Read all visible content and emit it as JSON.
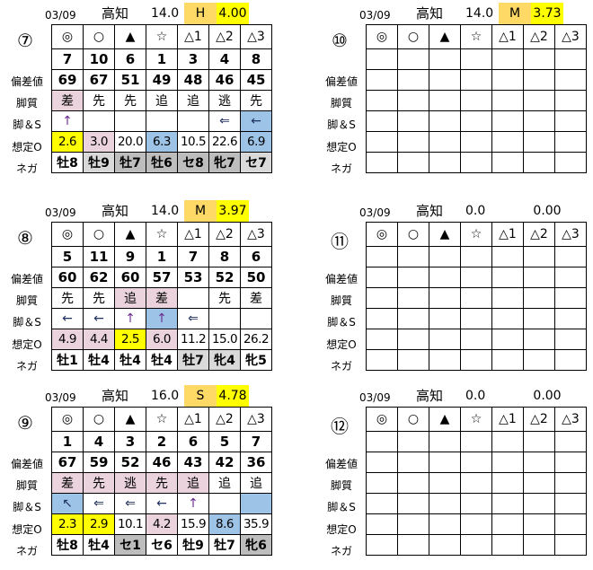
{
  "palette": {
    "p": "#ead3dd",
    "b": "#9dc3e6",
    "y": "#ffff00",
    "g": "#d9d9d9",
    "d": "#bdbdbd",
    "o": "#ffd966",
    "": "transparent"
  },
  "row_labels": [
    "偏差値",
    "脚質",
    "脚＆S",
    "想定O",
    "ネガ"
  ],
  "marks": [
    "◎",
    "○",
    "▲",
    "☆",
    "△1",
    "△2",
    "△3"
  ],
  "panels": [
    {
      "num": "⑦",
      "date": "03/09",
      "venue": "高知",
      "dist": "14.0",
      "grade": "H",
      "value": "4.00",
      "grade_bg": "o",
      "value_bg": "y",
      "horses": [
        "7",
        "10",
        "6",
        "1",
        "3",
        "4",
        "8"
      ],
      "scores": [
        "69",
        "67",
        "51",
        "49",
        "48",
        "46",
        "45"
      ],
      "styles": [
        "差",
        "先",
        "先",
        "追",
        "追",
        "逃",
        "先"
      ],
      "styles_bg": [
        "p",
        "",
        "",
        "",
        "",
        "",
        ""
      ],
      "arrows": [
        "↑",
        "",
        "",
        "",
        "",
        "⇐",
        "←"
      ],
      "arrows_bg": [
        "",
        "",
        "",
        "",
        "",
        "",
        "b"
      ],
      "odds": [
        "2.6",
        "3.0",
        "20.0",
        "6.3",
        "10.5",
        "22.6",
        "6.9"
      ],
      "odds_bg": [
        "y",
        "p",
        "",
        "b",
        "",
        "",
        "b"
      ],
      "nega": [
        "牡8",
        "牡9",
        "牡7",
        "牡6",
        "セ8",
        "牝7",
        "セ7"
      ],
      "nega_bg": [
        "",
        "g",
        "d",
        "d",
        "d",
        "d",
        "g"
      ]
    },
    {
      "num": "⑧",
      "date": "03/09",
      "venue": "高知",
      "dist": "14.0",
      "grade": "M",
      "value": "3.97",
      "grade_bg": "o",
      "value_bg": "y",
      "horses": [
        "5",
        "11",
        "9",
        "1",
        "7",
        "8",
        "6"
      ],
      "scores": [
        "60",
        "62",
        "60",
        "57",
        "53",
        "52",
        "50"
      ],
      "styles": [
        "先",
        "先",
        "追",
        "差",
        "",
        "先",
        "差"
      ],
      "styles_bg": [
        "",
        "",
        "p",
        "p",
        "",
        "",
        ""
      ],
      "arrows": [
        "←",
        "←",
        "↑",
        "↑",
        "⇐",
        "",
        ""
      ],
      "arrows_bg": [
        "",
        "",
        "",
        "b",
        "",
        "",
        ""
      ],
      "odds": [
        "4.9",
        "4.4",
        "2.5",
        "6.0",
        "11.2",
        "15.0",
        "26.2"
      ],
      "odds_bg": [
        "p",
        "p",
        "y",
        "p",
        "",
        "",
        ""
      ],
      "nega": [
        "牡1",
        "牡4",
        "牡4",
        "牡4",
        "牡7",
        "牝4",
        "牝5"
      ],
      "nega_bg": [
        "",
        "",
        "",
        "",
        "g",
        "g",
        ""
      ]
    },
    {
      "num": "⑨",
      "date": "03/09",
      "venue": "高知",
      "dist": "16.0",
      "grade": "S",
      "value": "4.78",
      "grade_bg": "o",
      "value_bg": "y",
      "horses": [
        "1",
        "4",
        "3",
        "2",
        "6",
        "5",
        "7"
      ],
      "scores": [
        "67",
        "59",
        "52",
        "46",
        "43",
        "42",
        "36"
      ],
      "styles": [
        "差",
        "先",
        "逃",
        "先",
        "追",
        "追",
        "追"
      ],
      "styles_bg": [
        "p",
        "p",
        "p",
        "p",
        "p",
        "",
        ""
      ],
      "arrows": [
        "↖",
        "⇐",
        "⇐",
        "←",
        "↑",
        "",
        ""
      ],
      "arrows_bg": [
        "b",
        "",
        "",
        "",
        "",
        "",
        "b"
      ],
      "odds": [
        "2.3",
        "2.9",
        "10.1",
        "4.2",
        "15.9",
        "8.6",
        "35.9"
      ],
      "odds_bg": [
        "y",
        "y",
        "",
        "p",
        "",
        "b",
        ""
      ],
      "nega": [
        "牡8",
        "牡4",
        "セ1",
        "セ6",
        "牡9",
        "牡7",
        "牝6"
      ],
      "nega_bg": [
        "",
        "",
        "d",
        "",
        "",
        "",
        "d"
      ]
    },
    {
      "num": "⑩",
      "date": "03/09",
      "venue": "高知",
      "dist": "14.0",
      "grade": "M",
      "value": "3.73",
      "grade_bg": "o",
      "value_bg": "y",
      "horses": [
        "",
        "",
        "",
        "",
        "",
        "",
        ""
      ],
      "scores": [
        "",
        "",
        "",
        "",
        "",
        "",
        ""
      ],
      "styles": [
        "",
        "",
        "",
        "",
        "",
        "",
        ""
      ],
      "arrows": [
        "",
        "",
        "",
        "",
        "",
        "",
        ""
      ],
      "odds": [
        "",
        "",
        "",
        "",
        "",
        "",
        ""
      ],
      "nega": [
        "",
        "",
        "",
        "",
        "",
        "",
        ""
      ]
    },
    {
      "num": "⑪",
      "date": "03/09",
      "venue": "高知",
      "dist": "0.0",
      "grade": "",
      "value": "0.00",
      "grade_bg": "",
      "value_bg": "",
      "horses": [
        "",
        "",
        "",
        "",
        "",
        "",
        ""
      ],
      "scores": [
        "",
        "",
        "",
        "",
        "",
        "",
        ""
      ],
      "styles": [
        "",
        "",
        "",
        "",
        "",
        "",
        ""
      ],
      "arrows": [
        "",
        "",
        "",
        "",
        "",
        "",
        ""
      ],
      "odds": [
        "",
        "",
        "",
        "",
        "",
        "",
        ""
      ],
      "nega": [
        "",
        "",
        "",
        "",
        "",
        "",
        ""
      ]
    },
    {
      "num": "⑫",
      "date": "03/09",
      "venue": "高知",
      "dist": "0.0",
      "grade": "",
      "value": "0.00",
      "grade_bg": "",
      "value_bg": "",
      "horses": [
        "",
        "",
        "",
        "",
        "",
        "",
        ""
      ],
      "scores": [
        "",
        "",
        "",
        "",
        "",
        "",
        ""
      ],
      "styles": [
        "",
        "",
        "",
        "",
        "",
        "",
        ""
      ],
      "arrows": [
        "",
        "",
        "",
        "",
        "",
        "",
        ""
      ],
      "odds": [
        "",
        "",
        "",
        "",
        "",
        "",
        ""
      ],
      "nega": [
        "",
        "",
        "",
        "",
        "",
        "",
        ""
      ]
    }
  ]
}
